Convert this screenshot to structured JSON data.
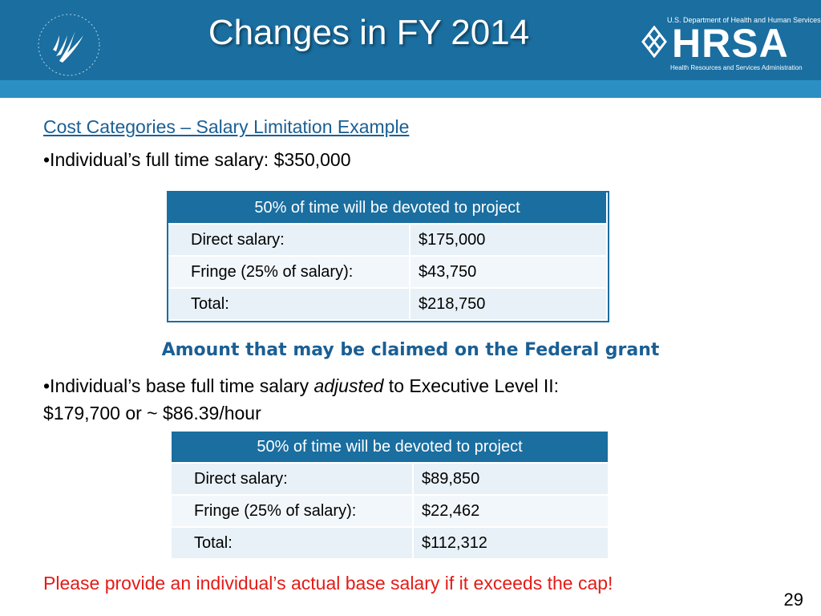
{
  "header": {
    "title": "Changes in FY 2014",
    "logo_top": "U.S. Department of Health and Human Services",
    "logo_word": "HRSA",
    "logo_bottom": "Health Resources and Services Administration",
    "bar_color": "#1a6ea0"
  },
  "subheading": "Cost Categories – Salary Limitation Example",
  "bullet1": "•Individual’s full time salary:  $350,000",
  "table1": {
    "header": "50% of time will be devoted to project",
    "rows": [
      {
        "label": "Direct salary:",
        "value": "$175,000"
      },
      {
        "label": "Fringe (25% of salary):",
        "value": "$43,750"
      },
      {
        "label": "Total:",
        "value": "$218,750"
      }
    ]
  },
  "claim_heading": "Amount that may be claimed on the Federal grant",
  "bullet2": {
    "prefix": "•Individual’s base full time salary ",
    "emphasis": "adjusted",
    "suffix": " to Executive Level II:",
    "line2": "$179,700 or ~ $86.39/hour"
  },
  "table2": {
    "header": "50% of time will be devoted to project",
    "rows": [
      {
        "label": "Direct salary:",
        "value": "$89,850"
      },
      {
        "label": "Fringe (25% of salary):",
        "value": "$22,462"
      },
      {
        "label": "Total:",
        "value": "$112,312"
      }
    ]
  },
  "note": "Please provide an individual’s actual base salary if it exceeds the cap!",
  "page_number": "29",
  "colors": {
    "accent": "#1a6ea0",
    "heading": "#1a5f94",
    "warning": "#e41b17"
  }
}
